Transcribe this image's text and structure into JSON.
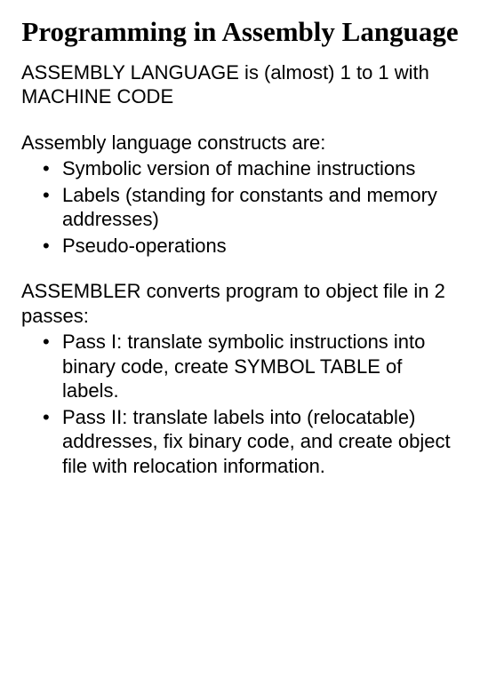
{
  "title": "Programming in Assembly Language",
  "intro": "ASSEMBLY LANGUAGE is (almost) 1 to 1 with MACHINE CODE",
  "constructs_heading": "Assembly language constructs are:",
  "constructs": [
    "Symbolic version of machine instructions",
    "Labels (standing for constants and memory addresses)",
    "Pseudo-operations"
  ],
  "assembler_heading": "ASSEMBLER converts program to object file in 2 passes:",
  "passes": [
    "Pass I: translate symbolic instructions into binary code, create SYMBOL TABLE of labels.",
    " Pass II: translate labels into (relocatable) addresses, fix binary code, and create object file with relocation information."
  ],
  "colors": {
    "background": "#ffffff",
    "text": "#000000"
  },
  "fonts": {
    "title": "Comic Sans MS",
    "body": "Arial",
    "title_size_pt": 31,
    "body_size_pt": 22
  }
}
